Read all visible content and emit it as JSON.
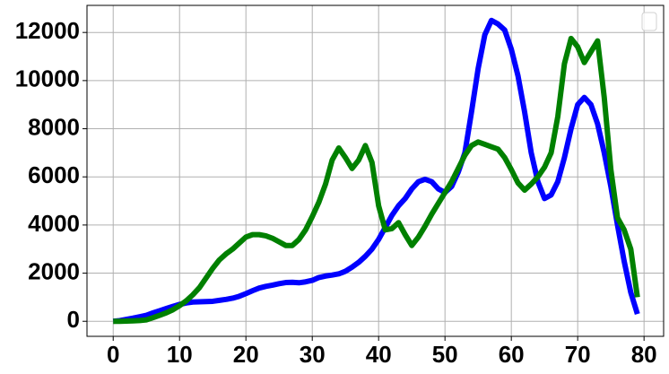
{
  "chart_data": {
    "type": "line",
    "x": [
      0,
      1,
      2,
      3,
      4,
      5,
      6,
      7,
      8,
      9,
      10,
      11,
      12,
      13,
      14,
      15,
      16,
      17,
      18,
      19,
      20,
      21,
      22,
      23,
      24,
      25,
      26,
      27,
      28,
      29,
      30,
      31,
      32,
      33,
      34,
      35,
      36,
      37,
      38,
      39,
      40,
      41,
      42,
      43,
      44,
      45,
      46,
      47,
      48,
      49,
      50,
      51,
      52,
      53,
      54,
      55,
      56,
      57,
      58,
      59,
      60,
      61,
      62,
      63,
      64,
      65,
      66,
      67,
      68,
      69,
      70,
      71,
      72,
      73,
      74,
      75,
      76,
      77,
      78,
      79
    ],
    "series": [
      {
        "color": "#0000ff",
        "values": [
          0,
          30,
          80,
          130,
          190,
          250,
          350,
          440,
          530,
          620,
          700,
          760,
          800,
          810,
          820,
          830,
          870,
          910,
          960,
          1040,
          1150,
          1270,
          1380,
          1450,
          1500,
          1560,
          1610,
          1620,
          1600,
          1640,
          1700,
          1820,
          1880,
          1920,
          1970,
          2080,
          2250,
          2450,
          2700,
          3000,
          3400,
          3900,
          4400,
          4800,
          5100,
          5500,
          5800,
          5900,
          5800,
          5500,
          5350,
          5600,
          6200,
          7000,
          8700,
          10500,
          11900,
          12500,
          12350,
          12100,
          11300,
          10200,
          8700,
          7000,
          5800,
          5100,
          5250,
          5800,
          6800,
          8000,
          9000,
          9300,
          9000,
          8200,
          7000,
          5600,
          4000,
          2500,
          1200,
          300
        ]
      },
      {
        "color": "#008000",
        "values": [
          0,
          0,
          10,
          20,
          30,
          60,
          150,
          250,
          350,
          480,
          650,
          850,
          1100,
          1400,
          1800,
          2200,
          2550,
          2800,
          3000,
          3250,
          3500,
          3600,
          3600,
          3550,
          3450,
          3300,
          3150,
          3150,
          3400,
          3800,
          4350,
          4950,
          5700,
          6700,
          7200,
          6800,
          6350,
          6700,
          7300,
          6600,
          4800,
          3800,
          3850,
          4100,
          3600,
          3150,
          3500,
          3950,
          4450,
          4900,
          5350,
          5800,
          6350,
          6900,
          7300,
          7450,
          7350,
          7250,
          7150,
          6800,
          6300,
          5750,
          5450,
          5700,
          6000,
          6400,
          7000,
          8500,
          10700,
          11750,
          11400,
          10750,
          11200,
          11650,
          9300,
          6300,
          4300,
          3800,
          3000,
          1000
        ]
      }
    ],
    "xlim": [
      -3.95,
      82.95
    ],
    "xticks": [
      0,
      10,
      20,
      30,
      40,
      50,
      60,
      70,
      80
    ],
    "ylim": [
      -625,
      13125
    ],
    "yticks": [
      0,
      2000,
      4000,
      6000,
      8000,
      10000,
      12000
    ],
    "grid": true,
    "legend": "upper right"
  }
}
